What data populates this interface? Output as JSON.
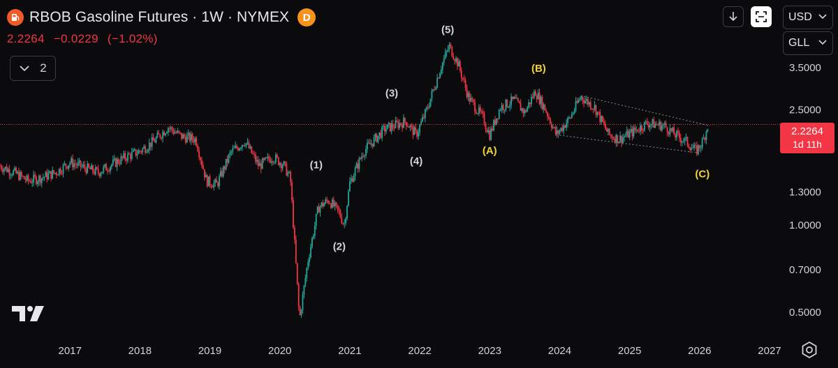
{
  "header": {
    "title": "RBOB Gasoline Futures · 1W · NYMEX",
    "badge": "D",
    "last_price": "2.2264",
    "change": "−0.0229",
    "change_pct": "(−1.02%)",
    "collapse_count": "2"
  },
  "controls": {
    "download_icon": "download-arrow-icon",
    "fullscreen_icon": "fullscreen-icon",
    "currency": "USD",
    "unit": "GLL",
    "settings_icon": "gear-icon"
  },
  "price_tag": {
    "price": "2.2264",
    "countdown": "1d 11h"
  },
  "colors": {
    "up": "#26a69a",
    "down": "#f23645",
    "label_white": "#d1d4dc",
    "label_yellow": "#f0d43a",
    "current_line": "#f23645"
  },
  "chart_data": {
    "type": "candlestick",
    "symbol": "RBOB Gasoline Futures",
    "interval": "1W",
    "exchange": "NYMEX",
    "y_scale": "log",
    "y_range": [
      0.43,
      4.8
    ],
    "x_range": [
      2016.0,
      2027.1
    ],
    "y_ticks": [
      {
        "value": 0.5,
        "label": "0.5000"
      },
      {
        "value": 0.7,
        "label": "0.7000"
      },
      {
        "value": 1.0,
        "label": "1.0000"
      },
      {
        "value": 1.3,
        "label": "1.3000"
      },
      {
        "value": 2.5,
        "label": "2.5000"
      },
      {
        "value": 3.5,
        "label": "3.5000"
      }
    ],
    "x_ticks": [
      {
        "value": 2017,
        "label": "2017"
      },
      {
        "value": 2018,
        "label": "2018"
      },
      {
        "value": 2019,
        "label": "2019"
      },
      {
        "value": 2020,
        "label": "2020"
      },
      {
        "value": 2021,
        "label": "2021"
      },
      {
        "value": 2022,
        "label": "2022"
      },
      {
        "value": 2023,
        "label": "2023"
      },
      {
        "value": 2024,
        "label": "2024"
      },
      {
        "value": 2025,
        "label": "2025"
      },
      {
        "value": 2026,
        "label": "2026"
      },
      {
        "value": 2027,
        "label": "2027"
      }
    ],
    "current_price": 2.2264,
    "price_path": [
      [
        2016.0,
        1.6
      ],
      [
        2016.2,
        1.52
      ],
      [
        2016.4,
        1.42
      ],
      [
        2016.6,
        1.46
      ],
      [
        2016.8,
        1.52
      ],
      [
        2017.0,
        1.65
      ],
      [
        2017.2,
        1.58
      ],
      [
        2017.4,
        1.52
      ],
      [
        2017.6,
        1.62
      ],
      [
        2017.8,
        1.72
      ],
      [
        2018.0,
        1.8
      ],
      [
        2018.2,
        1.95
      ],
      [
        2018.4,
        2.18
      ],
      [
        2018.6,
        2.02
      ],
      [
        2018.8,
        1.98
      ],
      [
        2018.95,
        1.42
      ],
      [
        2019.1,
        1.38
      ],
      [
        2019.3,
        1.78
      ],
      [
        2019.5,
        1.95
      ],
      [
        2019.7,
        1.6
      ],
      [
        2019.9,
        1.72
      ],
      [
        2020.05,
        1.62
      ],
      [
        2020.15,
        1.45
      ],
      [
        2020.22,
        0.8
      ],
      [
        2020.28,
        0.47
      ],
      [
        2020.4,
        0.75
      ],
      [
        2020.55,
        1.15
      ],
      [
        2020.7,
        1.22
      ],
      [
        2020.85,
        1.1
      ],
      [
        2020.92,
        1.0
      ],
      [
        2021.0,
        1.4
      ],
      [
        2021.2,
        1.8
      ],
      [
        2021.5,
        2.15
      ],
      [
        2021.8,
        2.28
      ],
      [
        2021.95,
        2.05
      ],
      [
        2022.1,
        2.5
      ],
      [
        2022.3,
        3.5
      ],
      [
        2022.42,
        4.15
      ],
      [
        2022.55,
        3.6
      ],
      [
        2022.7,
        2.75
      ],
      [
        2022.9,
        2.35
      ],
      [
        2023.0,
        2.05
      ],
      [
        2023.15,
        2.55
      ],
      [
        2023.35,
        2.7
      ],
      [
        2023.5,
        2.45
      ],
      [
        2023.65,
        2.9
      ],
      [
        2023.8,
        2.5
      ],
      [
        2023.95,
        2.05
      ],
      [
        2024.15,
        2.35
      ],
      [
        2024.3,
        2.78
      ],
      [
        2024.5,
        2.55
      ],
      [
        2024.7,
        2.05
      ],
      [
        2024.85,
        1.98
      ],
      [
        2025.05,
        2.1
      ],
      [
        2025.25,
        2.25
      ],
      [
        2025.5,
        2.2
      ],
      [
        2025.65,
        2.05
      ],
      [
        2025.8,
        1.95
      ],
      [
        2025.95,
        1.8
      ],
      [
        2026.05,
        1.95
      ],
      [
        2026.12,
        2.2264
      ]
    ],
    "wave_labels": [
      {
        "label": "(1)",
        "x": 2020.52,
        "y": 1.57,
        "color": "white"
      },
      {
        "label": "(2)",
        "x": 2020.85,
        "y": 0.82,
        "color": "white"
      },
      {
        "label": "(3)",
        "x": 2021.6,
        "y": 2.78,
        "color": "white"
      },
      {
        "label": "(4)",
        "x": 2021.95,
        "y": 1.62,
        "color": "white"
      },
      {
        "label": "(5)",
        "x": 2022.4,
        "y": 4.6,
        "color": "white"
      },
      {
        "label": "(A)",
        "x": 2023.0,
        "y": 1.76,
        "color": "yellow"
      },
      {
        "label": "(B)",
        "x": 2023.7,
        "y": 3.38,
        "color": "yellow"
      },
      {
        "label": "(C)",
        "x": 2026.04,
        "y": 1.46,
        "color": "yellow"
      }
    ],
    "channel_lines": [
      {
        "from": [
          2024.3,
          2.8
        ],
        "to": [
          2026.15,
          2.2
        ]
      },
      {
        "from": [
          2023.95,
          2.05
        ],
        "to": [
          2025.95,
          1.78
        ]
      }
    ]
  }
}
